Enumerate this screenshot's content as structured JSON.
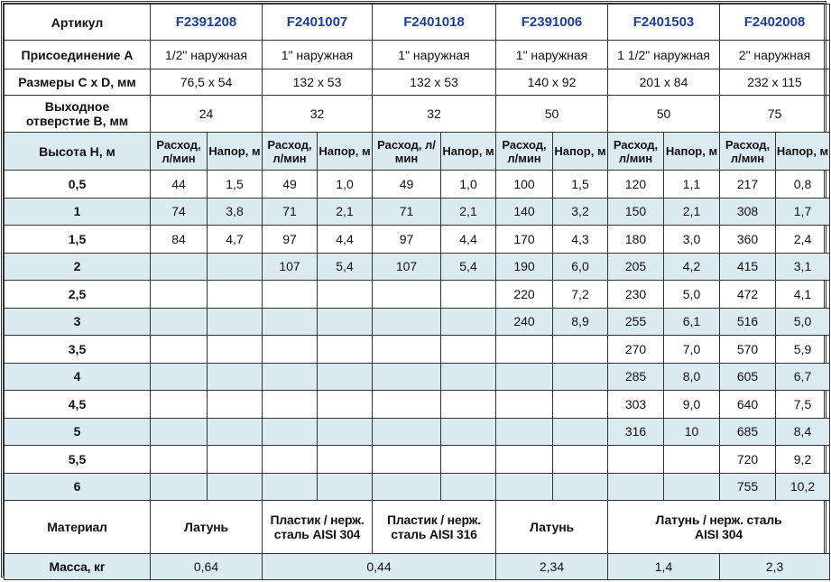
{
  "colors": {
    "accent": "#1f3f8f",
    "row_shade": "#dcebf2"
  },
  "labels": {
    "article": "Артикул",
    "connection": "Присоединение A",
    "dimensions": "Размеры C x D, мм",
    "outlet": "Выходное отверстие B, мм",
    "height": "Высота H, м",
    "flow": "Расход, л/мин",
    "head": "Напор, м",
    "material": "Материал",
    "mass": "Масса, кг"
  },
  "products": [
    {
      "article": "F2391208",
      "connection": "1/2\" наружная",
      "dimensions": "76,5 x 54",
      "outlet": "24"
    },
    {
      "article": "F2401007",
      "connection": "1\" наружная",
      "dimensions": "132 x 53",
      "outlet": "32"
    },
    {
      "article": "F2401018",
      "connection": "1\" наружная",
      "dimensions": "132 x 53",
      "outlet": "32"
    },
    {
      "article": "F2391006",
      "connection": "1\" наружная",
      "dimensions": "140 x 92",
      "outlet": "50"
    },
    {
      "article": "F2401503",
      "connection": "1 1/2\" наружная",
      "dimensions": "201 x 84",
      "outlet": "50"
    },
    {
      "article": "F2402008",
      "connection": "2\" наружная",
      "dimensions": "232 x 115",
      "outlet": "75"
    }
  ],
  "rows": [
    {
      "h": "0,5",
      "v": [
        "44",
        "1,5",
        "49",
        "1,0",
        "49",
        "1,0",
        "100",
        "1,5",
        "120",
        "1,1",
        "217",
        "0,8"
      ]
    },
    {
      "h": "1",
      "v": [
        "74",
        "3,8",
        "71",
        "2,1",
        "71",
        "2,1",
        "140",
        "3,2",
        "150",
        "2,1",
        "308",
        "1,7"
      ]
    },
    {
      "h": "1,5",
      "v": [
        "84",
        "4,7",
        "97",
        "4,4",
        "97",
        "4,4",
        "170",
        "4,3",
        "180",
        "3,0",
        "360",
        "2,4"
      ]
    },
    {
      "h": "2",
      "v": [
        "",
        "",
        "107",
        "5,4",
        "107",
        "5,4",
        "190",
        "6,0",
        "205",
        "4,2",
        "415",
        "3,1"
      ]
    },
    {
      "h": "2,5",
      "v": [
        "",
        "",
        "",
        "",
        "",
        "",
        "220",
        "7,2",
        "230",
        "5,0",
        "472",
        "4,1"
      ]
    },
    {
      "h": "3",
      "v": [
        "",
        "",
        "",
        "",
        "",
        "",
        "240",
        "8,9",
        "255",
        "6,1",
        "516",
        "5,0"
      ]
    },
    {
      "h": "3,5",
      "v": [
        "",
        "",
        "",
        "",
        "",
        "",
        "",
        "",
        "270",
        "7,0",
        "570",
        "5,9"
      ]
    },
    {
      "h": "4",
      "v": [
        "",
        "",
        "",
        "",
        "",
        "",
        "",
        "",
        "285",
        "8,0",
        "605",
        "6,7"
      ]
    },
    {
      "h": "4,5",
      "v": [
        "",
        "",
        "",
        "",
        "",
        "",
        "",
        "",
        "303",
        "9,0",
        "640",
        "7,5"
      ]
    },
    {
      "h": "5",
      "v": [
        "",
        "",
        "",
        "",
        "",
        "",
        "",
        "",
        "316",
        "10",
        "685",
        "8,4"
      ]
    },
    {
      "h": "5,5",
      "v": [
        "",
        "",
        "",
        "",
        "",
        "",
        "",
        "",
        "",
        "",
        "720",
        "9,2"
      ]
    },
    {
      "h": "6",
      "v": [
        "",
        "",
        "",
        "",
        "",
        "",
        "",
        "",
        "",
        "",
        "755",
        "10,2"
      ]
    }
  ],
  "materials": [
    "Латунь",
    "Пластик / нерж. сталь AISI 304",
    "Пластик / нерж. сталь AISI 316",
    "Латунь",
    "Латунь / нерж. сталь AISI 304"
  ],
  "masses": [
    "0,64",
    "0,44",
    "2,34",
    "1,4",
    "2,3"
  ]
}
